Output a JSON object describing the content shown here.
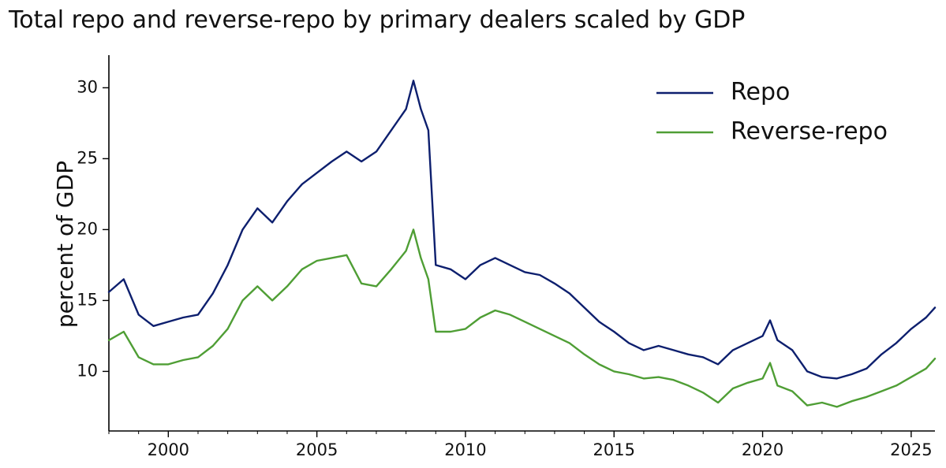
{
  "chart_data": {
    "type": "line",
    "title": "Total repo and reverse-repo by primary dealers scaled by GDP",
    "xlabel": "",
    "ylabel": "percent of GDP",
    "xlim": [
      1998.0,
      2025.8
    ],
    "ylim": [
      5.8,
      32.3
    ],
    "x_ticks": [
      2000,
      2005,
      2010,
      2015,
      2020,
      2025
    ],
    "y_ticks": [
      10,
      15,
      20,
      25,
      30
    ],
    "legend_position": "top-right",
    "grid": false,
    "x": [
      1998.0,
      1998.5,
      1999.0,
      1999.5,
      2000.0,
      2000.5,
      2001.0,
      2001.5,
      2002.0,
      2002.5,
      2003.0,
      2003.5,
      2004.0,
      2004.5,
      2005.0,
      2005.5,
      2006.0,
      2006.5,
      2007.0,
      2007.5,
      2008.0,
      2008.25,
      2008.5,
      2008.75,
      2009.0,
      2009.5,
      2010.0,
      2010.5,
      2011.0,
      2011.5,
      2012.0,
      2012.5,
      2013.0,
      2013.5,
      2014.0,
      2014.5,
      2015.0,
      2015.5,
      2016.0,
      2016.5,
      2017.0,
      2017.5,
      2018.0,
      2018.5,
      2019.0,
      2019.5,
      2020.0,
      2020.25,
      2020.5,
      2021.0,
      2021.5,
      2022.0,
      2022.5,
      2023.0,
      2023.5,
      2024.0,
      2024.5,
      2025.0,
      2025.5,
      2025.8
    ],
    "series": [
      {
        "name": "Repo",
        "color": "#0d1f6e",
        "values": [
          15.6,
          16.5,
          14.0,
          13.2,
          13.5,
          13.8,
          14.0,
          15.5,
          17.5,
          20.0,
          21.5,
          20.5,
          22.0,
          23.2,
          24.0,
          24.8,
          25.5,
          24.8,
          25.5,
          27.0,
          28.5,
          30.5,
          28.5,
          27.0,
          17.5,
          17.2,
          16.5,
          17.5,
          18.0,
          17.5,
          17.0,
          16.8,
          16.2,
          15.5,
          14.5,
          13.5,
          12.8,
          12.0,
          11.5,
          11.8,
          11.5,
          11.2,
          11.0,
          10.5,
          11.5,
          12.0,
          12.5,
          13.6,
          12.2,
          11.5,
          10.0,
          9.6,
          9.5,
          9.8,
          10.2,
          11.2,
          12.0,
          13.0,
          13.8,
          14.5
        ]
      },
      {
        "name": "Reverse-repo",
        "color": "#4f9e35",
        "values": [
          12.2,
          12.8,
          11.0,
          10.5,
          10.5,
          10.8,
          11.0,
          11.8,
          13.0,
          15.0,
          16.0,
          15.0,
          16.0,
          17.2,
          17.8,
          18.0,
          18.2,
          16.2,
          16.0,
          17.2,
          18.5,
          20.0,
          18.0,
          16.5,
          12.8,
          12.8,
          13.0,
          13.8,
          14.3,
          14.0,
          13.5,
          13.0,
          12.5,
          12.0,
          11.2,
          10.5,
          10.0,
          9.8,
          9.5,
          9.6,
          9.4,
          9.0,
          8.5,
          7.8,
          8.8,
          9.2,
          9.5,
          10.6,
          9.0,
          8.6,
          7.6,
          7.8,
          7.5,
          7.9,
          8.2,
          8.6,
          9.0,
          9.6,
          10.2,
          10.9
        ]
      }
    ]
  }
}
